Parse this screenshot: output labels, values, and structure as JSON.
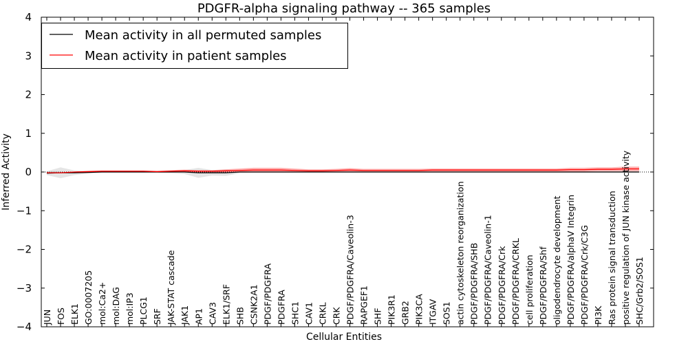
{
  "chart_data": {
    "type": "line",
    "title": "PDGFR-alpha signaling pathway -- 365 samples",
    "xlabel": "Cellular Entities",
    "ylabel": "Inferred Activity",
    "ylim": [
      -4,
      4
    ],
    "yticks": [
      -4,
      -3,
      -2,
      -1,
      0,
      1,
      2,
      3,
      4
    ],
    "ytick_labels": [
      "−4",
      "−3",
      "−2",
      "−1",
      "0",
      "1",
      "2",
      "3",
      "4"
    ],
    "legend_position": "top-left",
    "categories": [
      "JUN",
      "FOS",
      "ELK1",
      "GO:0007205",
      "mol:Ca2+",
      "mol:DAG",
      "mol:IP3",
      "PLCG1",
      "SRF",
      "JAK-STAT cascade",
      "JAK1",
      "AP1",
      "CAV3",
      "ELK1/SRF",
      "SHB",
      "CSNK2A1",
      "PDGF/PDGFRA",
      "PDGFRA",
      "SHC1",
      "CAV1",
      "CRKL",
      "CRK",
      "PDGF/PDGFRA/Caveolin-3",
      "RAPGEF1",
      "SHF",
      "PIK3R1",
      "GRB2",
      "PIK3CA",
      "ITGAV",
      "SOS1",
      "actin cytoskeleton reorganization",
      "PDGF/PDGFRA/SHB",
      "PDGF/PDGFRA/Caveolin-1",
      "PDGF/PDGFRA/Crk",
      "PDGF/PDGFRA/CRKL",
      "cell proliferation",
      "PDGF/PDGFRA/Shf",
      "oligodendrocyte development",
      "PDGF/PDGFRA/alphaV Integrin",
      "PDGF/PDGFRA/Crk/C3G",
      "PI3K",
      "Ras protein signal transduction",
      "positive regulation of JUN kinase activity",
      "SHC/Grb2/SOS1"
    ],
    "series": [
      {
        "name": "Mean activity in all permuted samples",
        "color": "#000000",
        "values": [
          -0.03,
          -0.02,
          -0.02,
          -0.01,
          0,
          0,
          0,
          0,
          0,
          0,
          0,
          -0.02,
          -0.02,
          -0.02,
          0,
          0,
          0,
          0,
          0,
          0,
          0,
          0,
          0,
          0,
          0,
          0,
          0,
          0,
          0,
          0,
          0,
          0,
          0,
          0,
          0,
          0,
          0,
          0,
          0,
          0,
          0,
          0,
          0,
          0
        ],
        "band": [
          0.05,
          0.14,
          0.06,
          0.03,
          0.02,
          0.02,
          0.02,
          0.02,
          0.02,
          0.03,
          0.05,
          0.13,
          0.07,
          0.08,
          0.03,
          0.02,
          0.02,
          0.02,
          0.02,
          0.02,
          0.02,
          0.02,
          0.02,
          0.02,
          0.02,
          0.02,
          0.02,
          0.02,
          0.02,
          0.02,
          0.02,
          0.02,
          0.02,
          0.02,
          0.02,
          0.02,
          0.02,
          0.02,
          0.02,
          0.02,
          0.02,
          0.02,
          0.02,
          0.02
        ]
      },
      {
        "name": "Mean activity in patient samples",
        "color": "#ff0000",
        "values": [
          -0.02,
          -0.02,
          0,
          0.01,
          0.02,
          0.02,
          0.02,
          0.02,
          0.01,
          0.02,
          0.03,
          0.02,
          0.02,
          0.03,
          0.04,
          0.05,
          0.05,
          0.05,
          0.04,
          0.03,
          0.03,
          0.04,
          0.05,
          0.04,
          0.04,
          0.04,
          0.04,
          0.04,
          0.05,
          0.05,
          0.05,
          0.05,
          0.05,
          0.05,
          0.05,
          0.05,
          0.05,
          0.05,
          0.06,
          0.06,
          0.07,
          0.07,
          0.08,
          0.08
        ],
        "band": [
          0.01,
          0.01,
          0.01,
          0.02,
          0.02,
          0.02,
          0.02,
          0.02,
          0.02,
          0.03,
          0.03,
          0.03,
          0.03,
          0.04,
          0.05,
          0.06,
          0.06,
          0.06,
          0.05,
          0.04,
          0.04,
          0.04,
          0.05,
          0.04,
          0.04,
          0.04,
          0.04,
          0.04,
          0.04,
          0.04,
          0.04,
          0.04,
          0.04,
          0.04,
          0.04,
          0.04,
          0.04,
          0.04,
          0.05,
          0.05,
          0.05,
          0.05,
          0.06,
          0.06
        ]
      }
    ]
  }
}
